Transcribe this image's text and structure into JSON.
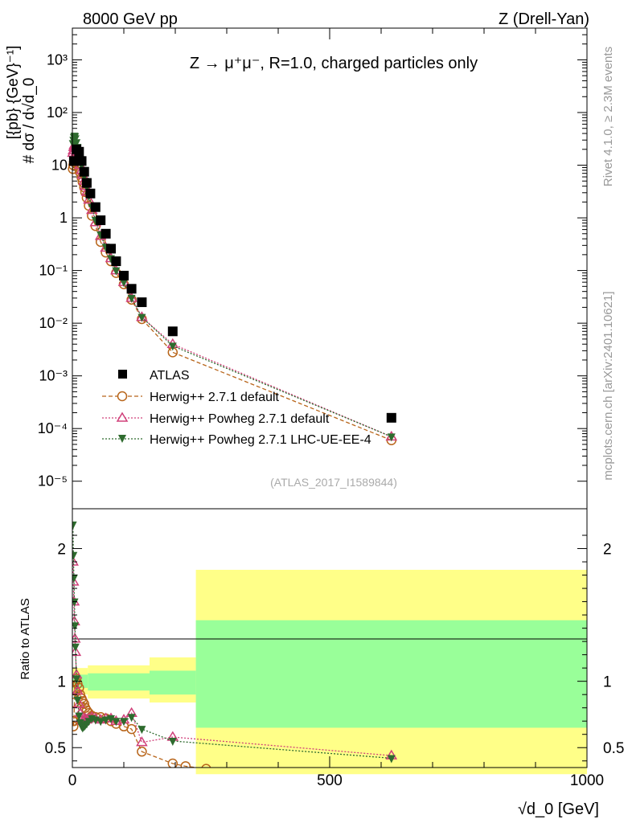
{
  "header": {
    "left": "8000 GeV pp",
    "right": "Z (Drell-Yan)"
  },
  "side_labels": {
    "rivet": "Rivet 4.1.0, ≥ 2.3M events",
    "mcplots": "mcplots.cern.ch [arXiv:2401.10621]"
  },
  "top_panel": {
    "title": "Z → μ⁺μ⁻, R=1.0, charged particles only",
    "ylabel_fraction": "# dσ / d√d_0",
    "ylabel_units": "[{pb} {GeV}⁻¹]",
    "analysis_id": "(ATLAS_2017_I1589844)",
    "yticks": [
      {
        "value": 1e-05,
        "label": "10⁻⁵"
      },
      {
        "value": 0.0001,
        "label": "10⁻⁴"
      },
      {
        "value": 0.001,
        "label": "10⁻³"
      },
      {
        "value": 0.01,
        "label": "10⁻²"
      },
      {
        "value": 0.1,
        "label": "10⁻¹"
      },
      {
        "value": 1,
        "label": "1"
      },
      {
        "value": 10,
        "label": "10"
      },
      {
        "value": 100,
        "label": "10²"
      },
      {
        "value": 1000,
        "label": "10³"
      }
    ]
  },
  "bottom_panel": {
    "ylabel": "Ratio to ATLAS",
    "yticks": [
      {
        "value": 0.5,
        "label": "0.5"
      },
      {
        "value": 1,
        "label": "1"
      },
      {
        "value": 2,
        "label": "2"
      }
    ],
    "xticks": [
      {
        "value": 0,
        "label": "0"
      },
      {
        "value": 500,
        "label": "500"
      },
      {
        "value": 1000,
        "label": "1000"
      }
    ],
    "xlabel": "√d_0 [GeV]"
  },
  "legend": [
    {
      "label": "ATLAS",
      "color": "#000000",
      "marker": "square"
    },
    {
      "label": "Herwig++ 2.7.1 default",
      "color": "#b8651a",
      "marker": "circle-open"
    },
    {
      "label": "Herwig++ Powheg 2.7.1 default",
      "color": "#d0407a",
      "marker": "triangle-open"
    },
    {
      "label": "Herwig++ Powheg 2.7.1 LHC-UE-EE-4",
      "color": "#2e6b2e",
      "marker": "triangle-down-filled"
    }
  ],
  "colors": {
    "band_inner": "#99ff99",
    "band_outer": "#ffff88"
  },
  "chart_data": {
    "type": "scatter",
    "xlim": [
      0,
      1000
    ],
    "ylim_top": [
      3e-06,
      4000
    ],
    "ylim_ratio": [
      0.35,
      2.3
    ],
    "yscale_top": "log",
    "series": [
      {
        "name": "ATLAS",
        "x": [
          3,
          8,
          13,
          18,
          23,
          28,
          35,
          45,
          55,
          65,
          75,
          85,
          100,
          115,
          135,
          195,
          620
        ],
        "y": [
          12,
          20,
          18,
          12,
          7.5,
          4.6,
          2.9,
          1.6,
          0.9,
          0.5,
          0.26,
          0.15,
          0.08,
          0.045,
          0.025,
          0.007,
          0.00016
        ]
      },
      {
        "name": "Herwig++ 2.7.1 default",
        "x": [
          1,
          2,
          3,
          4,
          5,
          6,
          8,
          10,
          13,
          15,
          18,
          20,
          23,
          25,
          28,
          32,
          38,
          45,
          55,
          65,
          75,
          85,
          100,
          115,
          135,
          195,
          620
        ],
        "y": [
          8.5,
          10,
          11.5,
          12.5,
          13,
          13.5,
          12,
          10.5,
          8.5,
          7.3,
          5.8,
          4.8,
          3.8,
          3.1,
          2.4,
          1.7,
          1.1,
          0.7,
          0.35,
          0.22,
          0.15,
          0.09,
          0.055,
          0.028,
          0.012,
          0.0028,
          6e-05
        ]
      },
      {
        "name": "Herwig++ Powheg 2.7.1 default",
        "x": [
          1,
          2,
          3,
          4,
          5,
          6,
          8,
          10,
          13,
          15,
          18,
          20,
          23,
          25,
          28,
          32,
          38,
          45,
          55,
          65,
          75,
          85,
          100,
          115,
          135,
          195,
          620
        ],
        "y": [
          17,
          19,
          22,
          24,
          23,
          21,
          18,
          15,
          12,
          10,
          8,
          6.5,
          5,
          4,
          3.1,
          2.2,
          1.4,
          0.82,
          0.45,
          0.27,
          0.17,
          0.1,
          0.06,
          0.03,
          0.013,
          0.004,
          7e-05
        ]
      },
      {
        "name": "Herwig++ Powheg 2.7.1 LHC-UE-EE-4",
        "x": [
          1,
          2,
          3,
          4,
          5,
          6,
          8,
          10,
          13,
          15,
          18,
          20,
          23,
          25,
          28,
          32,
          38,
          45,
          55,
          65,
          75,
          85,
          100,
          115,
          135,
          195,
          620
        ],
        "y": [
          26,
          30,
          34,
          36,
          35,
          32,
          27,
          22,
          17,
          13,
          10,
          8,
          6.2,
          5,
          3.8,
          2.6,
          1.6,
          0.9,
          0.48,
          0.28,
          0.17,
          0.1,
          0.06,
          0.03,
          0.013,
          0.0037,
          7e-05
        ]
      }
    ],
    "ratio_series": [
      {
        "name": "Herwig++ 2.7.1 default",
        "x": [
          1,
          2,
          3,
          4,
          5,
          6,
          8,
          10,
          13,
          15,
          18,
          20,
          23,
          25,
          28,
          32,
          38,
          45,
          55,
          65,
          75,
          85,
          100,
          115,
          135,
          195,
          220,
          260
        ],
        "y": [
          0.7,
          0.66,
          0.7,
          0.84,
          0.93,
          1.0,
          1.02,
          0.98,
          0.95,
          0.9,
          0.87,
          0.85,
          0.83,
          0.8,
          0.78,
          0.76,
          0.74,
          0.73,
          0.73,
          0.72,
          0.7,
          0.68,
          0.66,
          0.64,
          0.47,
          0.38,
          0.36,
          0.34
        ]
      },
      {
        "name": "Herwig++ Powheg 2.7.1 default",
        "x": [
          1,
          2,
          3,
          4,
          5,
          6,
          8,
          10,
          13,
          15,
          18,
          20,
          23,
          25,
          28,
          32,
          38,
          45,
          55,
          65,
          75,
          85,
          100,
          115,
          135,
          195,
          620
        ],
        "y": [
          1.9,
          1.75,
          1.6,
          1.45,
          1.32,
          1.22,
          1.05,
          0.93,
          0.83,
          0.76,
          0.72,
          0.7,
          0.7,
          0.72,
          0.71,
          0.72,
          0.73,
          0.72,
          0.71,
          0.72,
          0.72,
          0.7,
          0.71,
          0.76,
          0.54,
          0.58,
          0.44
        ]
      },
      {
        "name": "Herwig++ Powheg 2.7.1 LHC-UE-EE-4",
        "x": [
          1,
          2,
          3,
          4,
          5,
          6,
          8,
          10,
          13,
          15,
          18,
          20,
          23,
          25,
          28,
          32,
          38,
          45,
          55,
          65,
          75,
          85,
          100,
          115,
          135,
          195,
          620
        ],
        "y": [
          2.18,
          1.95,
          1.78,
          1.6,
          1.42,
          1.26,
          1.02,
          0.86,
          0.74,
          0.69,
          0.66,
          0.65,
          0.66,
          0.67,
          0.68,
          0.7,
          0.72,
          0.71,
          0.7,
          0.71,
          0.72,
          0.7,
          0.7,
          0.73,
          0.64,
          0.55,
          0.42
        ]
      }
    ],
    "uncertainty_bands": {
      "x_edges": [
        0,
        30,
        150,
        240,
        1000
      ],
      "inner": [
        [
          0.95,
          1.05
        ],
        [
          0.93,
          1.06
        ],
        [
          0.9,
          1.08
        ],
        [
          0.65,
          1.46
        ]
      ],
      "outer": [
        [
          0.9,
          1.1
        ],
        [
          0.87,
          1.12
        ],
        [
          0.84,
          1.18
        ],
        [
          0.3,
          1.84
        ]
      ]
    }
  }
}
